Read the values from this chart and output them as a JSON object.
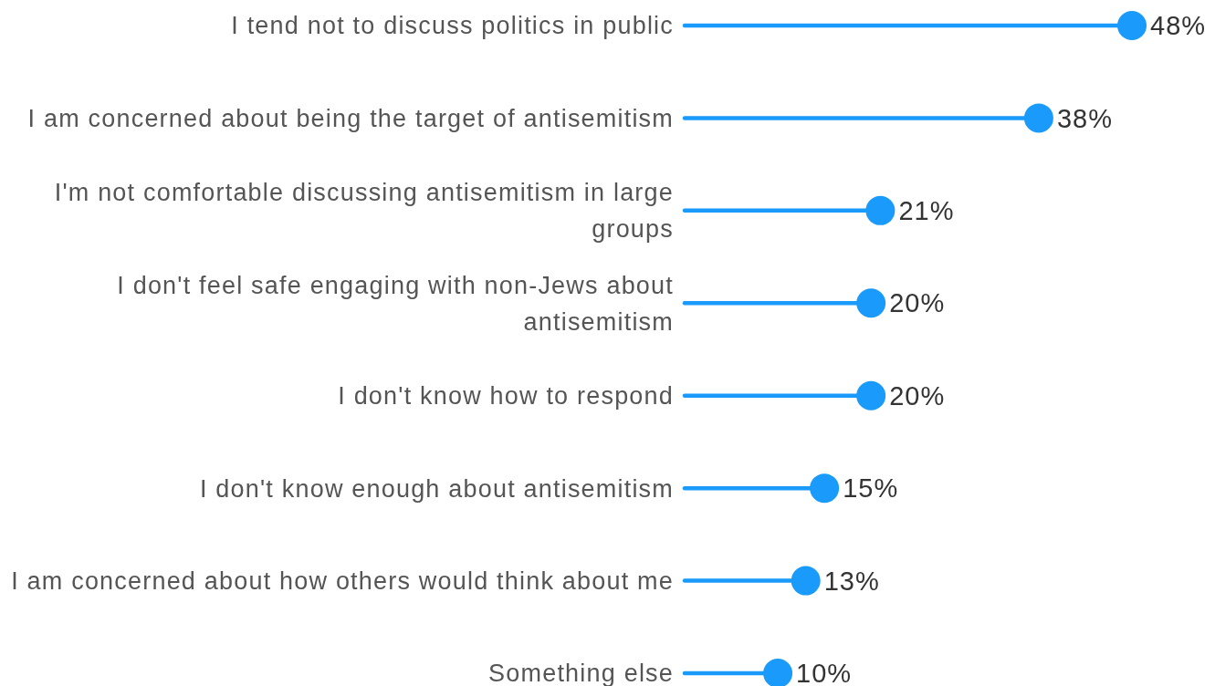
{
  "chart_data": {
    "type": "lollipop",
    "orientation": "horizontal",
    "categories": [
      "I tend not to discuss politics in public",
      "I am concerned about being the target of antisemitism",
      "I'm not comfortable discussing antisemitism in large groups",
      "I don't feel safe engaging with non-Jews about antisemitism",
      "I don't know how to respond",
      "I don't know enough about antisemitism",
      "I am concerned about how others would think about me",
      "Something else"
    ],
    "values": [
      48,
      38,
      21,
      20,
      20,
      15,
      13,
      10
    ],
    "value_labels": [
      "48%",
      "38%",
      "21%",
      "20%",
      "20%",
      "15%",
      "13%",
      "10%"
    ],
    "color": "#1a9bfc"
  }
}
